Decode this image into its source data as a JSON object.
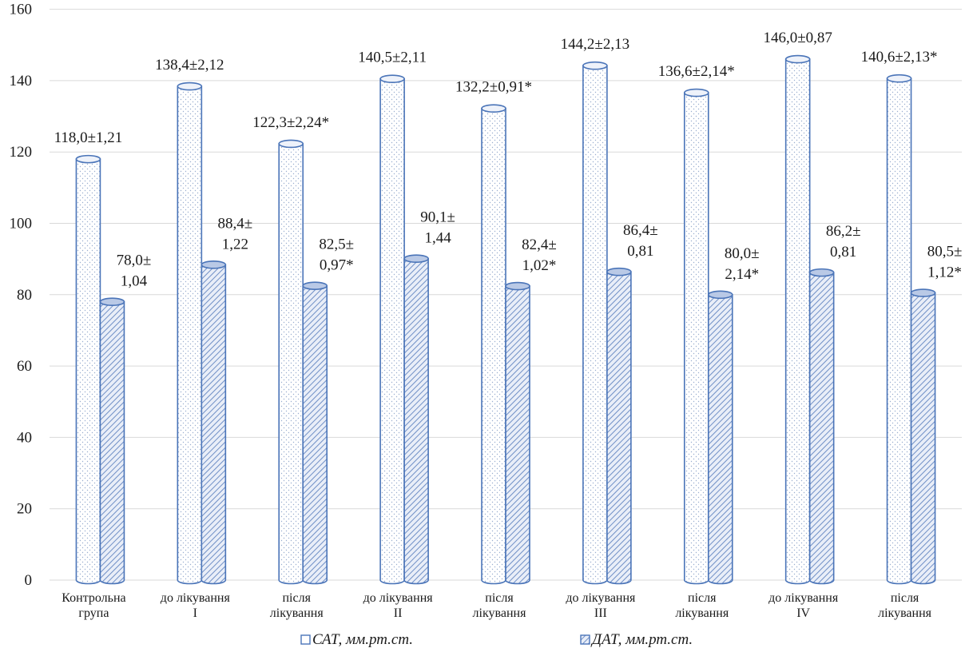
{
  "chart_data": {
    "type": "bar",
    "style": "cylinder",
    "categories": [
      [
        "Контрольна",
        "група"
      ],
      [
        "до лікування",
        "I"
      ],
      [
        "після",
        "лікування"
      ],
      [
        "до лікування",
        "II"
      ],
      [
        "після",
        "лікування"
      ],
      [
        "до лікування",
        "III"
      ],
      [
        "після",
        "лікування"
      ],
      [
        "до лікування",
        "IV"
      ],
      [
        "після",
        "лікування"
      ]
    ],
    "series": [
      {
        "name": "САТ, мм.рт.ст.",
        "fill": "dotted",
        "values": [
          118.0,
          138.4,
          122.3,
          140.5,
          132.2,
          144.2,
          136.6,
          146.0,
          140.6
        ],
        "labels": [
          [
            "118,0±1,21"
          ],
          [
            "138,4±2,12"
          ],
          [
            "122,3±2,24*"
          ],
          [
            "140,5±2,11"
          ],
          [
            "132,2±0,91*"
          ],
          [
            "144,2±2,13"
          ],
          [
            "136,6±2,14*"
          ],
          [
            "146,0±0,87"
          ],
          [
            "140,6±2,13*"
          ]
        ]
      },
      {
        "name": "ДАТ, мм.рт.ст.",
        "fill": "hatched",
        "values": [
          78.0,
          88.4,
          82.5,
          90.1,
          82.4,
          86.4,
          80.0,
          86.2,
          80.5
        ],
        "labels": [
          [
            "78,0±",
            "1,04"
          ],
          [
            "88,4±",
            "1,22"
          ],
          [
            "82,5±",
            "0,97*"
          ],
          [
            "90,1±",
            "1,44"
          ],
          [
            "82,4±",
            "1,02*"
          ],
          [
            "86,4±",
            "0,81"
          ],
          [
            "80,0±",
            "2,14*"
          ],
          [
            "86,2±",
            "0,81"
          ],
          [
            "80,5±",
            "1,12*"
          ]
        ]
      }
    ],
    "ylim": [
      0,
      160
    ],
    "yticks": [
      0,
      20,
      40,
      60,
      80,
      100,
      120,
      140,
      160
    ],
    "grid": true,
    "legend_position": "bottom",
    "colors": {
      "outline": "#4a74b8",
      "gridline": "#d9d9d9",
      "hatch": "#6f8fc6",
      "dots": "#9aaecf"
    }
  }
}
